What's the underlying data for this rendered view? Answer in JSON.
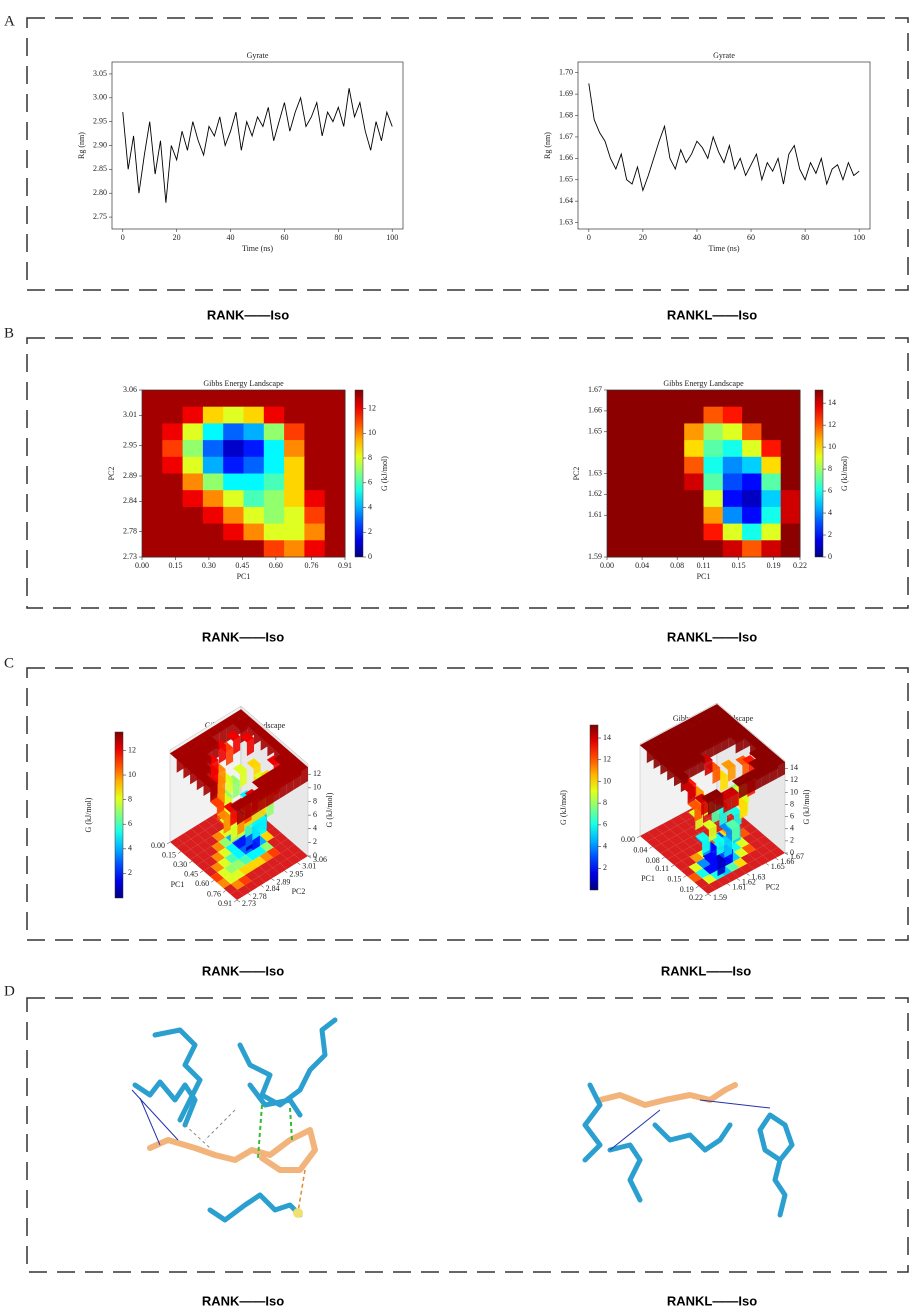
{
  "panel_labels": [
    "A",
    "B",
    "C",
    "D"
  ],
  "captions": [
    "RANK——Iso",
    "RANKL——Iso",
    "RANK——Iso",
    "RANKL——Iso",
    "RANK——Iso",
    "RANKL——Iso",
    "RANK——Iso",
    "RANKL——Iso"
  ],
  "chart_data": [
    {
      "type": "line",
      "title": "Gyrate",
      "x_label": "Time (ns)",
      "y_label": "Rg (nm)",
      "color": "#000000",
      "x": [
        0,
        2,
        4,
        6,
        8,
        10,
        12,
        14,
        16,
        18,
        20,
        22,
        24,
        26,
        28,
        30,
        32,
        34,
        36,
        38,
        40,
        42,
        44,
        46,
        48,
        50,
        52,
        54,
        56,
        58,
        60,
        62,
        64,
        66,
        68,
        70,
        72,
        74,
        76,
        78,
        80,
        82,
        84,
        86,
        88,
        90,
        92,
        94,
        96,
        98,
        100
      ],
      "values": [
        2.97,
        2.85,
        2.92,
        2.8,
        2.88,
        2.95,
        2.84,
        2.91,
        2.78,
        2.9,
        2.87,
        2.93,
        2.89,
        2.95,
        2.91,
        2.88,
        2.94,
        2.92,
        2.96,
        2.9,
        2.93,
        2.97,
        2.89,
        2.95,
        2.92,
        2.96,
        2.94,
        2.98,
        2.91,
        2.95,
        2.99,
        2.93,
        2.97,
        3.0,
        2.94,
        2.96,
        2.99,
        2.92,
        2.97,
        2.95,
        2.98,
        2.94,
        3.02,
        2.96,
        2.99,
        2.93,
        2.89,
        2.95,
        2.91,
        2.97,
        2.94
      ],
      "xlim": [
        -4,
        104
      ],
      "ylim": [
        2.725,
        3.075
      ],
      "xticks": [
        0,
        20,
        40,
        60,
        80,
        100
      ],
      "yticks": [
        2.75,
        {
          "value": 2.8,
          "label": "2.80"
        },
        2.85,
        {
          "value": 2.9,
          "label": "2.90"
        },
        2.95,
        {
          "value": 3,
          "label": "3.00"
        },
        3.05
      ]
    },
    {
      "type": "line",
      "title": "Gyrate",
      "x_label": "Time (ns)",
      "y_label": "Rg (nm)",
      "color": "#000000",
      "x": [
        0,
        2,
        4,
        6,
        8,
        10,
        12,
        14,
        16,
        18,
        20,
        22,
        24,
        26,
        28,
        30,
        32,
        34,
        36,
        38,
        40,
        42,
        44,
        46,
        48,
        50,
        52,
        54,
        56,
        58,
        60,
        62,
        64,
        66,
        68,
        70,
        72,
        74,
        76,
        78,
        80,
        82,
        84,
        86,
        88,
        90,
        92,
        94,
        96,
        98,
        100
      ],
      "values": [
        1.695,
        1.678,
        1.672,
        1.668,
        1.66,
        1.655,
        1.662,
        1.65,
        1.648,
        1.656,
        1.645,
        1.652,
        1.66,
        1.668,
        1.675,
        1.66,
        1.655,
        1.664,
        1.658,
        1.662,
        1.668,
        1.665,
        1.66,
        1.67,
        1.663,
        1.658,
        1.666,
        1.655,
        1.66,
        1.652,
        1.657,
        1.662,
        1.65,
        1.658,
        1.654,
        1.66,
        1.648,
        1.662,
        1.666,
        1.655,
        1.65,
        1.658,
        1.653,
        1.66,
        1.648,
        1.655,
        1.657,
        1.65,
        1.658,
        1.652,
        1.654
      ],
      "xlim": [
        -4,
        104
      ],
      "ylim": [
        1.627,
        1.705
      ],
      "xticks": [
        0,
        20,
        40,
        60,
        80,
        100
      ],
      "yticks": [
        1.63,
        1.64,
        1.65,
        1.66,
        1.67,
        1.68,
        1.69,
        {
          "value": 1.7,
          "label": "1.70"
        }
      ]
    },
    {
      "type": "heatmap",
      "title": "Gibbs Energy Landscape",
      "x_label": "PC1",
      "y_label": "PC2",
      "colorbar_label": "G (kJ/mol)",
      "colormap": "jet",
      "xlim": [
        0,
        0.91
      ],
      "ylim": [
        2.73,
        3.06
      ],
      "xticks": [
        {
          "value": 0,
          "label": "0.00"
        },
        0.15,
        {
          "value": 0.3,
          "label": "0.30"
        },
        0.45,
        {
          "value": 0.6,
          "label": "0.60"
        },
        0.76,
        0.91
      ],
      "yticks": [
        2.73,
        2.78,
        2.84,
        2.89,
        2.95,
        3.01,
        3.06
      ],
      "clim": [
        0,
        13.5
      ],
      "cticks": [
        0,
        2,
        4,
        6,
        8,
        10,
        12
      ],
      "z": [
        [
          13,
          13,
          13,
          13,
          13,
          13,
          13,
          13,
          13,
          13
        ],
        [
          13,
          13,
          12,
          9,
          8,
          9,
          12,
          13,
          13,
          13
        ],
        [
          13,
          12,
          8,
          5,
          3,
          4,
          7,
          11,
          13,
          13
        ],
        [
          13,
          11,
          7,
          3,
          1,
          2,
          5,
          10,
          13,
          13
        ],
        [
          13,
          12,
          8,
          4,
          2,
          3,
          5,
          9,
          13,
          13
        ],
        [
          13,
          13,
          10,
          7,
          5,
          5,
          6,
          9,
          13,
          13
        ],
        [
          13,
          13,
          12,
          10,
          8,
          6,
          7,
          9,
          12,
          13
        ],
        [
          13,
          13,
          13,
          12,
          10,
          8,
          7,
          8,
          11,
          13
        ],
        [
          13,
          13,
          13,
          13,
          12,
          10,
          8,
          8,
          10,
          13
        ],
        [
          13,
          13,
          13,
          13,
          13,
          13,
          11,
          10,
          12,
          13
        ]
      ]
    },
    {
      "type": "heatmap",
      "title": "Gibbs Energy Landscape",
      "x_label": "PC1",
      "y_label": "PC2",
      "colorbar_label": "G (kJ/mol)",
      "colormap": "jet",
      "xlim": [
        0,
        0.22
      ],
      "ylim": [
        1.59,
        1.67
      ],
      "xticks": [
        {
          "value": 0,
          "label": "0.00"
        },
        0.04,
        0.08,
        0.11,
        0.15,
        0.19,
        0.22
      ],
      "yticks": [
        1.59,
        1.61,
        1.62,
        1.63,
        1.65,
        1.66,
        1.67
      ],
      "clim": [
        0,
        15.2
      ],
      "cticks": [
        0,
        2,
        4,
        6,
        8,
        10,
        12,
        14
      ],
      "z": [
        [
          15,
          15,
          15,
          15,
          15,
          15,
          15,
          15,
          15,
          15
        ],
        [
          15,
          15,
          15,
          15,
          15,
          12,
          13,
          15,
          15,
          15
        ],
        [
          15,
          15,
          15,
          15,
          11,
          8,
          9,
          12,
          15,
          15
        ],
        [
          15,
          15,
          15,
          15,
          10,
          7,
          6,
          9,
          13,
          15
        ],
        [
          15,
          15,
          15,
          15,
          12,
          6,
          4,
          5,
          10,
          15
        ],
        [
          15,
          15,
          15,
          15,
          14,
          7,
          3,
          2,
          7,
          15
        ],
        [
          15,
          15,
          15,
          15,
          15,
          9,
          2,
          1,
          5,
          14
        ],
        [
          15,
          15,
          15,
          15,
          15,
          11,
          4,
          2,
          6,
          14
        ],
        [
          15,
          15,
          15,
          15,
          15,
          13,
          9,
          6,
          9,
          15
        ],
        [
          15,
          15,
          15,
          15,
          15,
          15,
          14,
          12,
          14,
          15
        ]
      ]
    },
    {
      "type": "surface3d",
      "title": "Gibbs Energy Landscape",
      "x_label": "PC1",
      "y_label": "PC2",
      "z_label": "G (kJ/mol)",
      "colorbar_label": "G (kJ/mol)",
      "colormap": "jet",
      "xlim": [
        0,
        0.91
      ],
      "ylim": [
        2.73,
        3.06
      ],
      "zlim": [
        0,
        13.5
      ],
      "xticks": [
        {
          "value": 0,
          "label": "0.00"
        },
        0.15,
        {
          "value": 0.3,
          "label": "0.30"
        },
        0.45,
        {
          "value": 0.6,
          "label": "0.60"
        },
        0.76,
        0.91
      ],
      "yticks": [
        2.73,
        2.78,
        2.84,
        2.89,
        2.95,
        3.01,
        3.06
      ],
      "zticks": [
        0,
        2,
        4,
        6,
        8,
        10,
        12
      ],
      "clim": [
        0,
        13.5
      ],
      "cticks": [
        2,
        4,
        6,
        8,
        10,
        12
      ]
    },
    {
      "type": "surface3d",
      "title": "Gibbs Energy Landscape",
      "x_label": "PC1",
      "y_label": "PC2",
      "z_label": "G (kJ/mol)",
      "colorbar_label": "G (kJ/mol)",
      "colormap": "jet",
      "xlim": [
        0,
        0.22
      ],
      "ylim": [
        1.59,
        1.67
      ],
      "zlim": [
        0,
        15.2
      ],
      "xticks": [
        {
          "value": 0,
          "label": "0.00"
        },
        0.04,
        0.08,
        0.11,
        0.15,
        0.19,
        0.22
      ],
      "yticks": [
        1.59,
        1.61,
        1.62,
        1.63,
        1.65,
        1.66,
        1.67
      ],
      "zticks": [
        0,
        2,
        4,
        6,
        8,
        10,
        12,
        14
      ],
      "clim": [
        0,
        15.2
      ],
      "cticks": [
        2,
        4,
        6,
        8,
        10,
        12,
        14
      ]
    }
  ]
}
